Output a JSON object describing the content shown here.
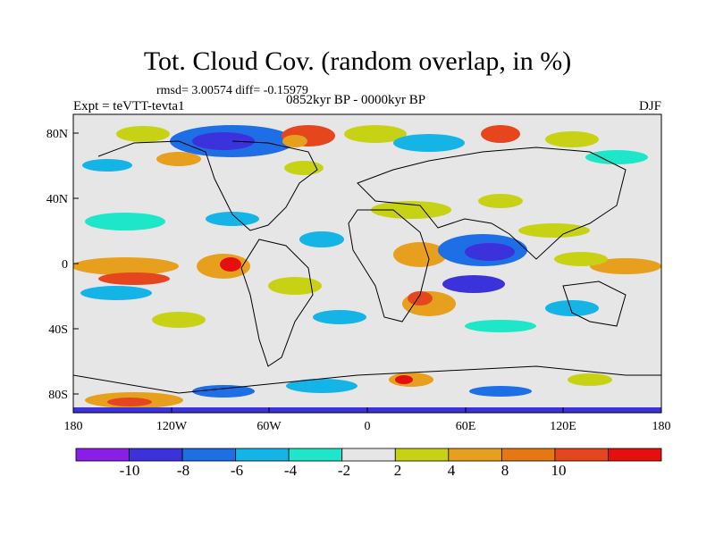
{
  "title": "Tot. Cloud Cov. (random overlap, in %)",
  "stats": "rmsd= 3.00574 diff= -0.15979",
  "experiment": "Expt = teVTT-tevta1",
  "period": "0852kyr BP - 0000kyr BP",
  "season": "DJF",
  "lat_labels": [
    "80N",
    "40N",
    "0",
    "40S",
    "80S"
  ],
  "lon_labels": [
    "180",
    "120W",
    "60W",
    "0",
    "60E",
    "120E",
    "180"
  ],
  "colorbar": {
    "labels": [
      "-10",
      "-8",
      "-6",
      "-4",
      "-2",
      "2",
      "4",
      "8",
      "10"
    ],
    "colors": [
      "#8b1ee6",
      "#3c32dc",
      "#1e6ee6",
      "#14b4e6",
      "#1ee6c8",
      "#e6e6e6",
      "#c8d214",
      "#e6a01e",
      "#e67814",
      "#e6461e",
      "#e60f0f"
    ]
  }
}
